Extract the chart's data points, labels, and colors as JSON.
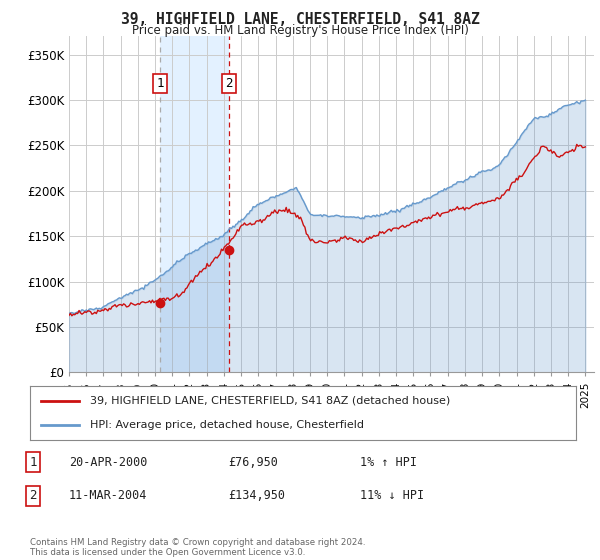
{
  "title": "39, HIGHFIELD LANE, CHESTERFIELD, S41 8AZ",
  "subtitle": "Price paid vs. HM Land Registry's House Price Index (HPI)",
  "ylim": [
    0,
    370000
  ],
  "yticks": [
    0,
    50000,
    100000,
    150000,
    200000,
    250000,
    300000,
    350000
  ],
  "ytick_labels": [
    "£0",
    "£50K",
    "£100K",
    "£150K",
    "£200K",
    "£250K",
    "£300K",
    "£350K"
  ],
  "sale1_year": 2000.3,
  "sale1_price": 76950,
  "sale2_year": 2004.3,
  "sale2_price": 134950,
  "house_color": "#cc1111",
  "hpi_color": "#6699cc",
  "hpi_fill_color": "#d0e4f7",
  "shade_x1": 2000.3,
  "shade_x2": 2004.3,
  "shade_color": "#ddeeff",
  "vline1_color": "#aaaaaa",
  "vline2_color": "#cc1111",
  "legend_house": "39, HIGHFIELD LANE, CHESTERFIELD, S41 8AZ (detached house)",
  "legend_hpi": "HPI: Average price, detached house, Chesterfield",
  "table_row1": [
    "1",
    "20-APR-2000",
    "£76,950",
    "1% ↑ HPI"
  ],
  "table_row2": [
    "2",
    "11-MAR-2004",
    "£134,950",
    "11% ↓ HPI"
  ],
  "footer": "Contains HM Land Registry data © Crown copyright and database right 2024.\nThis data is licensed under the Open Government Licence v3.0.",
  "background_color": "#ffffff",
  "grid_color": "#cccccc",
  "xmin": 1995,
  "xmax": 2025.5
}
